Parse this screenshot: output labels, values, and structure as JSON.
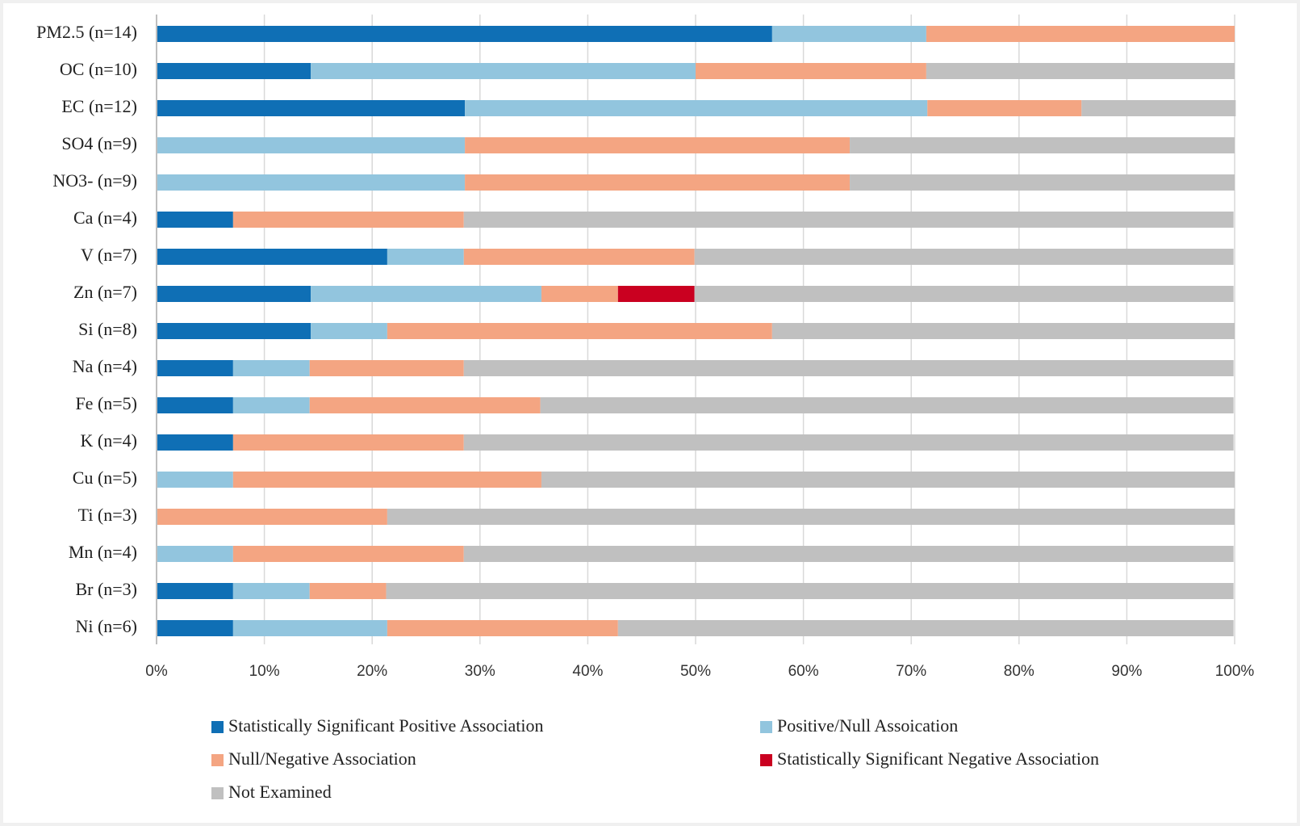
{
  "chart_data": {
    "type": "stacked_barh",
    "categories": [
      "PM2.5 (n=14)",
      "OC (n=10)",
      "EC (n=12)",
      "SO4 (n=9)",
      "NO3- (n=9)",
      "Ca (n=4)",
      "V (n=7)",
      "Zn (n=7)",
      "Si (n=8)",
      "Na (n=4)",
      "Fe (n=5)",
      "K (n=4)",
      "Cu (n=5)",
      "Ti (n=3)",
      "Mn (n=4)",
      "Br (n=3)",
      "Ni (n=6)"
    ],
    "series": [
      {
        "name": "Statistically Significant Positive Association",
        "color": "#0f6fb5",
        "values": [
          57.1,
          14.3,
          28.6,
          0,
          0,
          7.1,
          21.4,
          14.3,
          14.3,
          7.1,
          7.1,
          7.1,
          0,
          0,
          0,
          7.1,
          7.1
        ]
      },
      {
        "name": "Positive/Null Assoication",
        "color": "#92c5de",
        "values": [
          14.3,
          35.7,
          42.9,
          28.6,
          28.6,
          0,
          7.1,
          21.4,
          7.1,
          7.1,
          7.1,
          0,
          7.1,
          0,
          7.1,
          7.1,
          14.3
        ]
      },
      {
        "name": "Null/Negative Association",
        "color": "#f4a582",
        "values": [
          28.6,
          21.4,
          14.3,
          35.7,
          35.7,
          21.4,
          21.4,
          7.1,
          35.7,
          14.3,
          21.4,
          21.4,
          28.6,
          21.4,
          21.4,
          7.1,
          21.4
        ]
      },
      {
        "name": "Statistically Significant Negative Association",
        "color": "#ca0020",
        "values": [
          0,
          0,
          0,
          0,
          0,
          0,
          0,
          7.1,
          0,
          0,
          0,
          0,
          0,
          0,
          0,
          0,
          0
        ]
      },
      {
        "name": "Not Examined",
        "color": "#c0c0c0",
        "values": [
          0,
          28.6,
          14.3,
          35.7,
          35.7,
          71.4,
          50,
          50,
          42.9,
          71.4,
          64.3,
          71.4,
          64.3,
          78.6,
          71.4,
          78.6,
          57.1
        ]
      }
    ],
    "xlim": [
      0,
      100
    ],
    "xticks": [
      {
        "value": 0,
        "label": "0%"
      },
      {
        "value": 10,
        "label": "10%"
      },
      {
        "value": 20,
        "label": "20%"
      },
      {
        "value": 30,
        "label": "30%"
      },
      {
        "value": 40,
        "label": "40%"
      },
      {
        "value": 50,
        "label": "50%"
      },
      {
        "value": 60,
        "label": "60%"
      },
      {
        "value": 70,
        "label": "70%"
      },
      {
        "value": 80,
        "label": "80%"
      },
      {
        "value": 90,
        "label": "90%"
      },
      {
        "value": 100,
        "label": "100%"
      }
    ],
    "grid": true,
    "legend": "bottom"
  }
}
